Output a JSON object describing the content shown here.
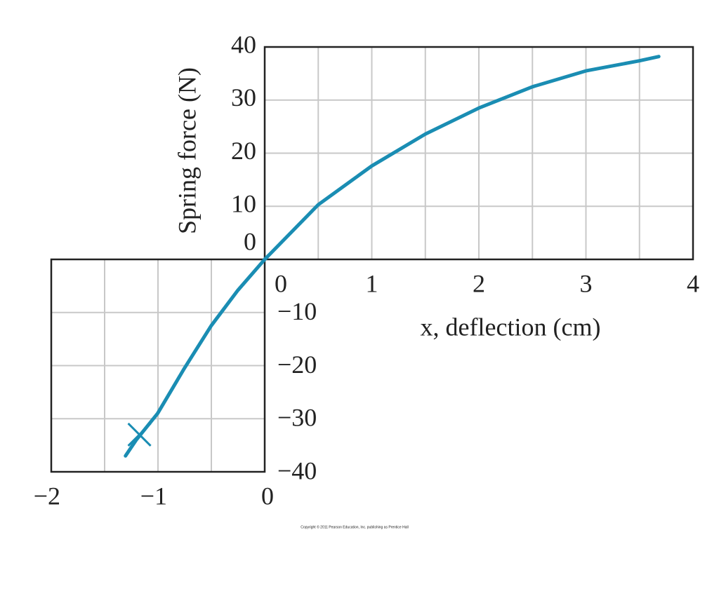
{
  "chart_data": {
    "type": "line",
    "ylabel": "Spring force (N)",
    "xlabel": "x, deflection (cm)",
    "copyright": "Copyright © 2011 Pearson Education, Inc. publishing as Prentice Hall",
    "color": "#1a8db3",
    "x": [
      -1.3,
      -1.2,
      -1,
      -0.75,
      -0.5,
      -0.25,
      0,
      0.5,
      1,
      1.5,
      2,
      2.5,
      3,
      3.5,
      3.68
    ],
    "values": [
      -37,
      -34,
      -29,
      -20.5,
      -12.5,
      -5.8,
      0,
      10.3,
      17.6,
      23.6,
      28.5,
      32.5,
      35.5,
      37.4,
      38.2
    ],
    "marker": {
      "x": -1.17,
      "y": -33
    },
    "grid": true,
    "panels": [
      {
        "xlim": [
          0,
          4
        ],
        "ylim": [
          0,
          40
        ],
        "xticks": [
          0,
          1,
          2,
          3,
          4
        ],
        "yticks": [
          0,
          10,
          20,
          30,
          40
        ],
        "xgrid": [
          0.5,
          1,
          1.5,
          2,
          2.5,
          3,
          3.5
        ],
        "ygrid": [
          10,
          20,
          30
        ]
      },
      {
        "xlim": [
          -2,
          0
        ],
        "ylim": [
          -40,
          0
        ],
        "xticks": [
          {
            "value": -2,
            "label": "−2"
          },
          {
            "value": -1,
            "label": "−1"
          },
          0
        ],
        "yticks": [
          {
            "value": -10,
            "label": "−10"
          },
          {
            "value": -20,
            "label": "−20"
          },
          {
            "value": -30,
            "label": "−30"
          },
          {
            "value": -40,
            "label": "−40"
          }
        ],
        "xgrid": [
          -1.5,
          -1,
          -0.5
        ],
        "ygrid": [
          -10,
          -20,
          -30
        ]
      }
    ]
  }
}
